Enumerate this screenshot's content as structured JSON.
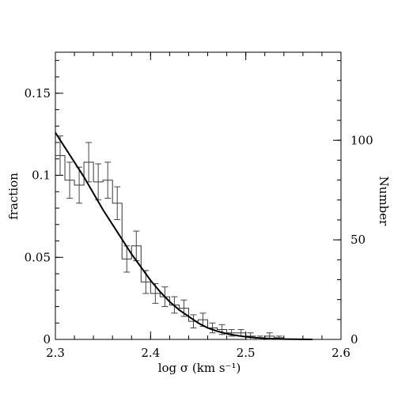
{
  "chart_data": {
    "type": "histogram",
    "xlabel": "log σ (km s⁻¹)",
    "ylabel_left": "fraction",
    "ylabel_right": "Number",
    "xlim": [
      2.3,
      2.6
    ],
    "ylim_left": [
      0,
      0.175
    ],
    "ylim_right_max": 144.2,
    "x_ticks": [
      "2.3",
      "2.4",
      "2.5",
      "2.6"
    ],
    "x_tick_values": [
      2.3,
      2.4,
      2.5,
      2.6
    ],
    "y_ticks_left": [
      "0",
      "0.05",
      "0.1",
      "0.15"
    ],
    "y_tick_values_left": [
      0,
      0.05,
      0.1,
      0.15
    ],
    "y_ticks_right": [
      "0",
      "50",
      "100"
    ],
    "y_tick_values_right": [
      0,
      50,
      100
    ],
    "bin_width": 0.01,
    "bins": [
      {
        "x0": 2.3,
        "x1": 2.31,
        "value": 0.112,
        "err": 0.012
      },
      {
        "x0": 2.31,
        "x1": 2.32,
        "value": 0.097,
        "err": 0.011
      },
      {
        "x0": 2.32,
        "x1": 2.33,
        "value": 0.094,
        "err": 0.011
      },
      {
        "x0": 2.33,
        "x1": 2.34,
        "value": 0.108,
        "err": 0.012
      },
      {
        "x0": 2.34,
        "x1": 2.35,
        "value": 0.096,
        "err": 0.011
      },
      {
        "x0": 2.35,
        "x1": 2.36,
        "value": 0.097,
        "err": 0.011
      },
      {
        "x0": 2.36,
        "x1": 2.37,
        "value": 0.083,
        "err": 0.01
      },
      {
        "x0": 2.37,
        "x1": 2.38,
        "value": 0.049,
        "err": 0.008
      },
      {
        "x0": 2.38,
        "x1": 2.39,
        "value": 0.057,
        "err": 0.009
      },
      {
        "x0": 2.39,
        "x1": 2.4,
        "value": 0.035,
        "err": 0.007
      },
      {
        "x0": 2.4,
        "x1": 2.41,
        "value": 0.028,
        "err": 0.006
      },
      {
        "x0": 2.41,
        "x1": 2.42,
        "value": 0.026,
        "err": 0.006
      },
      {
        "x0": 2.42,
        "x1": 2.43,
        "value": 0.021,
        "err": 0.005
      },
      {
        "x0": 2.43,
        "x1": 2.44,
        "value": 0.019,
        "err": 0.005
      },
      {
        "x0": 2.44,
        "x1": 2.45,
        "value": 0.011,
        "err": 0.004
      },
      {
        "x0": 2.45,
        "x1": 2.46,
        "value": 0.012,
        "err": 0.004
      },
      {
        "x0": 2.46,
        "x1": 2.47,
        "value": 0.007,
        "err": 0.003
      },
      {
        "x0": 2.47,
        "x1": 2.48,
        "value": 0.006,
        "err": 0.003
      },
      {
        "x0": 2.48,
        "x1": 2.49,
        "value": 0.004,
        "err": 0.002
      },
      {
        "x0": 2.49,
        "x1": 2.5,
        "value": 0.004,
        "err": 0.002
      },
      {
        "x0": 2.5,
        "x1": 2.51,
        "value": 0.002,
        "err": 0.002
      },
      {
        "x0": 2.51,
        "x1": 2.52,
        "value": 0.001,
        "err": 0.001
      },
      {
        "x0": 2.52,
        "x1": 2.53,
        "value": 0.002,
        "err": 0.002
      },
      {
        "x0": 2.53,
        "x1": 2.54,
        "value": 0.001,
        "err": 0.001
      },
      {
        "x0": 2.54,
        "x1": 2.55,
        "value": 0.0,
        "err": 0.0
      }
    ],
    "curve": {
      "x": [
        2.3,
        2.31,
        2.32,
        2.33,
        2.34,
        2.35,
        2.36,
        2.37,
        2.38,
        2.39,
        2.4,
        2.41,
        2.42,
        2.43,
        2.44,
        2.45,
        2.46,
        2.47,
        2.48,
        2.49,
        2.5,
        2.51,
        2.52,
        2.53,
        2.54,
        2.55,
        2.56,
        2.57
      ],
      "y": [
        0.126,
        0.117,
        0.108,
        0.099,
        0.089,
        0.079,
        0.07,
        0.061,
        0.052,
        0.044,
        0.036,
        0.029,
        0.023,
        0.018,
        0.014,
        0.01,
        0.007,
        0.005,
        0.0035,
        0.0024,
        0.0016,
        0.001,
        0.0006,
        0.0004,
        0.0002,
        0.0001,
        5e-05,
        0.0
      ]
    },
    "grid": false,
    "colors": {
      "line": "#000000",
      "histogram": "#333333",
      "errorbar": "#444444"
    }
  }
}
